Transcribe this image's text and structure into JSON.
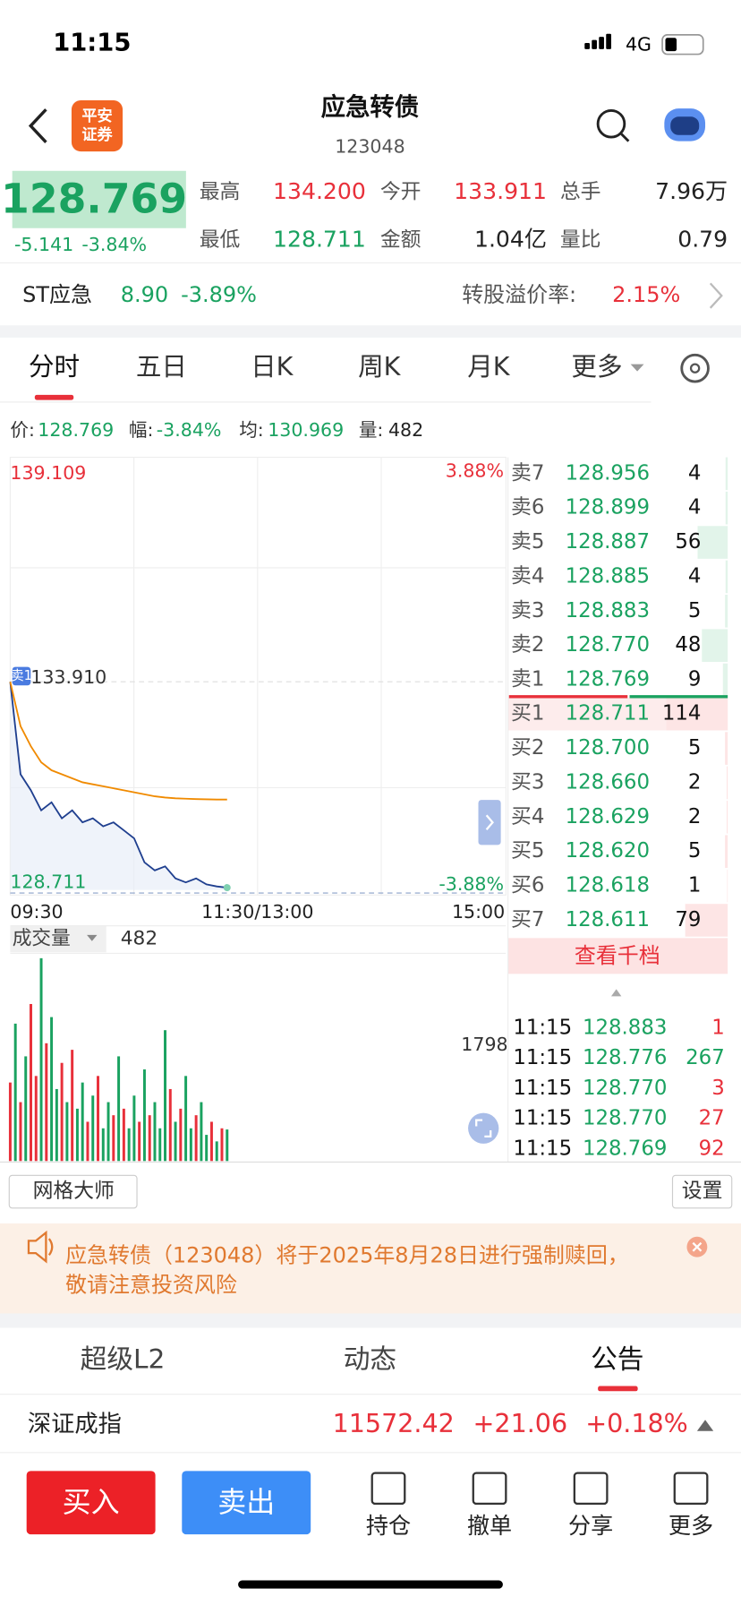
{
  "status": {
    "time": "11:15",
    "network": "4G"
  },
  "header": {
    "title": "应急转债",
    "code": "123048",
    "logo": [
      "平安",
      "证券"
    ]
  },
  "quote": {
    "price": "128.769",
    "change": "-5.141",
    "pct": "-3.84%",
    "fields": [
      {
        "label": "最高",
        "value": "134.200",
        "color": "#e8303a"
      },
      {
        "label": "今开",
        "value": "133.911",
        "color": "#e8303a"
      },
      {
        "label": "总手",
        "value": "7.96万",
        "color": "#222"
      },
      {
        "label": "最低",
        "value": "128.711",
        "color": "#1aa260"
      },
      {
        "label": "金额",
        "value": "1.04亿",
        "color": "#222"
      },
      {
        "label": "量比",
        "value": "0.79",
        "color": "#222"
      }
    ]
  },
  "stock": {
    "name": "ST应急",
    "price": "8.90",
    "pct": "-3.89%",
    "premium_label": "转股溢价率:",
    "premium": "2.15%"
  },
  "tabs": [
    "分时",
    "五日",
    "日K",
    "周K",
    "月K",
    "更多"
  ],
  "info": [
    {
      "label": "价:",
      "value": "128.769",
      "color": "#1aa260"
    },
    {
      "label": "幅:",
      "value": "-3.84%",
      "color": "#1aa260"
    },
    {
      "label": "均:",
      "value": "130.969",
      "color": "#1aa260"
    },
    {
      "label": "量:",
      "value": "482",
      "color": "#222"
    }
  ],
  "chart_data": {
    "type": "line",
    "top_left": "139.109",
    "top_right": "3.88%",
    "mid_label": "133.910",
    "bottom_left": "128.711",
    "bottom_right": "-3.88%",
    "xtick_labels": [
      "09:30",
      "11:30/13:00",
      "15:00"
    ],
    "ylim": [
      128.711,
      139.109
    ],
    "series": [
      {
        "color": "#1f3f8f",
        "values": [
          133.91,
          131.6,
          131.2,
          130.7,
          130.9,
          130.5,
          130.7,
          130.4,
          130.5,
          130.3,
          130.4,
          130.2,
          130.0,
          129.4,
          129.2,
          129.3,
          129.0,
          128.9,
          129.0,
          128.85,
          128.8,
          128.769
        ]
      },
      {
        "color": "#f08a00",
        "values": [
          133.91,
          132.8,
          132.3,
          131.9,
          131.7,
          131.6,
          131.5,
          131.4,
          131.35,
          131.3,
          131.25,
          131.2,
          131.15,
          131.1,
          131.05,
          131.02,
          131.0,
          130.99,
          130.98,
          130.975,
          130.97,
          130.969
        ]
      }
    ]
  },
  "volume": {
    "type": "bar",
    "label": "成交量",
    "current": "482",
    "ylim": [
      0,
      3127
    ],
    "yticks": [
      1798
    ],
    "values": [
      1200,
      2100,
      900,
      1600,
      2400,
      1300,
      3100,
      1800,
      2200,
      1100,
      1500,
      900,
      1700,
      800,
      1200,
      600,
      1000,
      1300,
      500,
      900,
      700,
      1600,
      800,
      500,
      1000,
      600,
      1400,
      700,
      900,
      500,
      2000,
      1100,
      600,
      800,
      1300,
      500,
      700,
      900,
      400,
      600,
      300,
      500,
      482
    ],
    "colors": [
      "#e8303a",
      "#1aa260",
      "#e8303a",
      "#1aa260",
      "#e8303a",
      "#e8303a",
      "#1aa260",
      "#e8303a",
      "#1aa260",
      "#1aa260",
      "#e8303a",
      "#1aa260",
      "#e8303a",
      "#1aa260",
      "#1aa260",
      "#e8303a",
      "#1aa260",
      "#e8303a",
      "#1aa260",
      "#1aa260",
      "#e8303a",
      "#1aa260",
      "#e8303a",
      "#1aa260",
      "#1aa260",
      "#e8303a",
      "#1aa260",
      "#e8303a",
      "#1aa260",
      "#1aa260",
      "#1aa260",
      "#e8303a",
      "#1aa260",
      "#e8303a",
      "#1aa260",
      "#1aa260",
      "#e8303a",
      "#1aa260",
      "#1aa260",
      "#e8303a",
      "#1aa260",
      "#e8303a",
      "#1aa260"
    ]
  },
  "book": {
    "sells": [
      {
        "label": "卖7",
        "price": "128.956",
        "vol": 4
      },
      {
        "label": "卖6",
        "price": "128.899",
        "vol": 4
      },
      {
        "label": "卖5",
        "price": "128.887",
        "vol": 56
      },
      {
        "label": "卖4",
        "price": "128.885",
        "vol": 4
      },
      {
        "label": "卖3",
        "price": "128.883",
        "vol": 5
      },
      {
        "label": "卖2",
        "price": "128.770",
        "vol": 48
      },
      {
        "label": "卖1",
        "price": "128.769",
        "vol": 9
      }
    ],
    "buys": [
      {
        "label": "买1",
        "price": "128.711",
        "vol": 114
      },
      {
        "label": "买2",
        "price": "128.700",
        "vol": 5
      },
      {
        "label": "买3",
        "price": "128.660",
        "vol": 2
      },
      {
        "label": "买4",
        "price": "128.629",
        "vol": 2
      },
      {
        "label": "买5",
        "price": "128.620",
        "vol": 5
      },
      {
        "label": "买6",
        "price": "128.618",
        "vol": 1
      },
      {
        "label": "买7",
        "price": "128.611",
        "vol": 79
      }
    ],
    "more_button": "查看千档",
    "trades": [
      {
        "time": "11:15",
        "price": "128.883",
        "vol": 1,
        "color": "#e8303a"
      },
      {
        "time": "11:15",
        "price": "128.776",
        "vol": 267,
        "color": "#1aa260"
      },
      {
        "time": "11:15",
        "price": "128.770",
        "vol": 3,
        "color": "#e8303a"
      },
      {
        "time": "11:15",
        "price": "128.770",
        "vol": 27,
        "color": "#e8303a"
      },
      {
        "time": "11:15",
        "price": "128.769",
        "vol": 92,
        "color": "#e8303a"
      }
    ]
  },
  "tools": {
    "grid": "网格大师",
    "settings": "设置"
  },
  "notice": [
    "应急转债（123048）将于2025年8月28日进行强制赎回，",
    "敬请注意投资风险"
  ],
  "sub_tabs": [
    "超级L2",
    "动态",
    "公告"
  ],
  "index": {
    "name": "深证成指",
    "value": "11572.42",
    "change": "+21.06",
    "pct": "+0.18%"
  },
  "actions": {
    "buy": "买入",
    "sell": "卖出",
    "items": [
      "持仓",
      "撤单",
      "分享",
      "更多"
    ]
  }
}
